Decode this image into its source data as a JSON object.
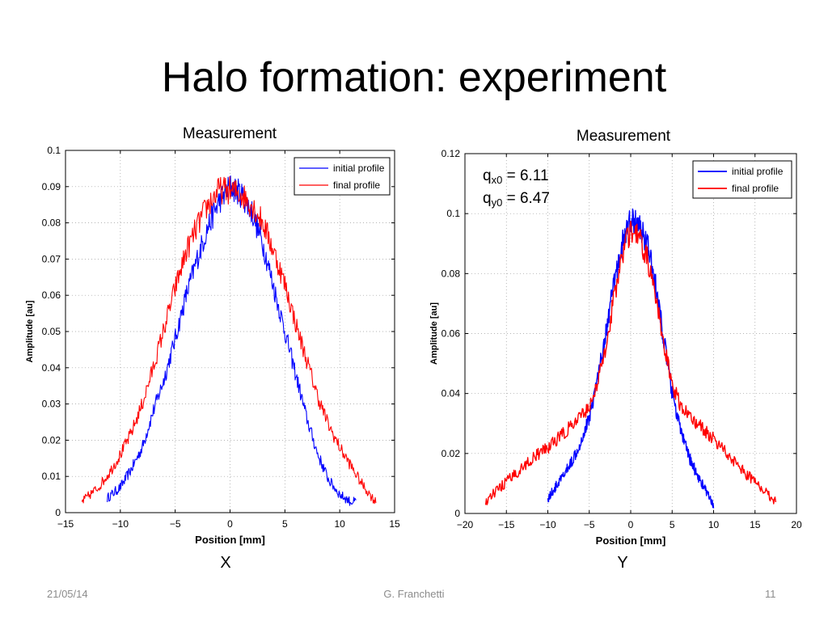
{
  "slide": {
    "title": "Halo formation: experiment",
    "footer_date": "21/05/14",
    "footer_author": "G. Franchetti",
    "footer_page": "11"
  },
  "chart_data": [
    {
      "type": "line",
      "title": "Measurement",
      "panel_label": "X",
      "xlabel": "Position [mm]",
      "ylabel": "Amplitude [au]",
      "xlim": [
        -15,
        15
      ],
      "ylim": [
        0,
        0.1
      ],
      "xticks": [
        -15,
        -10,
        -5,
        0,
        5,
        10,
        15
      ],
      "xtick_labels": [
        "−15",
        "−10",
        "−5",
        "0",
        "5",
        "10",
        "15"
      ],
      "yticks": [
        0,
        0.01,
        0.02,
        0.03,
        0.04,
        0.05,
        0.06,
        0.07,
        0.08,
        0.09,
        0.1
      ],
      "ytick_labels": [
        "0",
        "0.01",
        "0.02",
        "0.03",
        "0.04",
        "0.05",
        "0.06",
        "0.07",
        "0.08",
        "0.09",
        "0.1"
      ],
      "grid": true,
      "legend_position": "top-right",
      "annotations": [],
      "series": [
        {
          "name": "initial profile",
          "color": "#0000ff",
          "x": [
            -11.2,
            -10,
            -9,
            -8,
            -7,
            -6,
            -5,
            -4,
            -3,
            -2,
            -1,
            0,
            1,
            2,
            3,
            4,
            5,
            6,
            7,
            8,
            9,
            10,
            11,
            11.5
          ],
          "y": [
            0.004,
            0.007,
            0.012,
            0.018,
            0.028,
            0.037,
            0.048,
            0.06,
            0.07,
            0.079,
            0.086,
            0.09,
            0.088,
            0.083,
            0.074,
            0.062,
            0.05,
            0.038,
            0.026,
            0.016,
            0.009,
            0.005,
            0.003,
            0.003
          ]
        },
        {
          "name": "final profile",
          "color": "#ff0000",
          "x": [
            -13.5,
            -12,
            -11,
            -10,
            -9,
            -8,
            -7,
            -6,
            -5,
            -4,
            -3,
            -2,
            -1,
            0,
            1,
            2,
            3,
            4,
            5,
            6,
            7,
            8,
            9,
            10,
            11,
            12,
            13,
            13.3
          ],
          "y": [
            0.003,
            0.007,
            0.011,
            0.016,
            0.022,
            0.03,
            0.04,
            0.051,
            0.062,
            0.072,
            0.079,
            0.085,
            0.089,
            0.089,
            0.088,
            0.085,
            0.08,
            0.072,
            0.063,
            0.052,
            0.042,
            0.032,
            0.024,
            0.018,
            0.013,
            0.008,
            0.004,
            0.003
          ]
        }
      ]
    },
    {
      "type": "line",
      "title": "Measurement",
      "panel_label": "Y",
      "xlabel": "Position [mm]",
      "ylabel": "Amplitude [au]",
      "xlim": [
        -20,
        20
      ],
      "ylim": [
        0,
        0.12
      ],
      "xticks": [
        -20,
        -15,
        -10,
        -5,
        0,
        5,
        10,
        15,
        20
      ],
      "xtick_labels": [
        "−20",
        "−15",
        "−10",
        "−5",
        "0",
        "5",
        "10",
        "15",
        "20"
      ],
      "yticks": [
        0,
        0.02,
        0.04,
        0.06,
        0.08,
        0.1,
        0.12
      ],
      "ytick_labels": [
        "0",
        "0.02",
        "0.04",
        "0.06",
        "0.08",
        "0.1",
        "0.12"
      ],
      "grid": true,
      "legend_position": "top-right",
      "annotations": [
        {
          "symbol": "q",
          "subscript": "x0",
          "text": " = 6.11"
        },
        {
          "symbol": "q",
          "subscript": "y0",
          "text": " = 6.47"
        }
      ],
      "series": [
        {
          "name": "initial profile",
          "color": "#0000ff",
          "x": [
            -10,
            -9,
            -8,
            -7,
            -6,
            -5,
            -4,
            -3,
            -2,
            -1,
            0,
            1,
            2,
            3,
            4,
            5,
            6,
            7,
            8,
            9,
            10
          ],
          "y": [
            0.005,
            0.009,
            0.013,
            0.018,
            0.024,
            0.032,
            0.045,
            0.06,
            0.077,
            0.09,
            0.098,
            0.096,
            0.09,
            0.076,
            0.058,
            0.04,
            0.028,
            0.019,
            0.013,
            0.008,
            0.002
          ]
        },
        {
          "name": "final profile",
          "color": "#ff0000",
          "x": [
            -17.5,
            -16,
            -14,
            -12,
            -10,
            -8,
            -6,
            -5,
            -4,
            -3,
            -2,
            -1,
            0,
            1,
            2,
            3,
            4,
            5,
            6,
            8,
            10,
            12,
            14,
            16,
            17.5
          ],
          "y": [
            0.004,
            0.008,
            0.013,
            0.018,
            0.022,
            0.027,
            0.032,
            0.036,
            0.043,
            0.056,
            0.072,
            0.087,
            0.094,
            0.092,
            0.085,
            0.072,
            0.056,
            0.043,
            0.036,
            0.03,
            0.025,
            0.019,
            0.013,
            0.008,
            0.004
          ]
        }
      ]
    }
  ]
}
